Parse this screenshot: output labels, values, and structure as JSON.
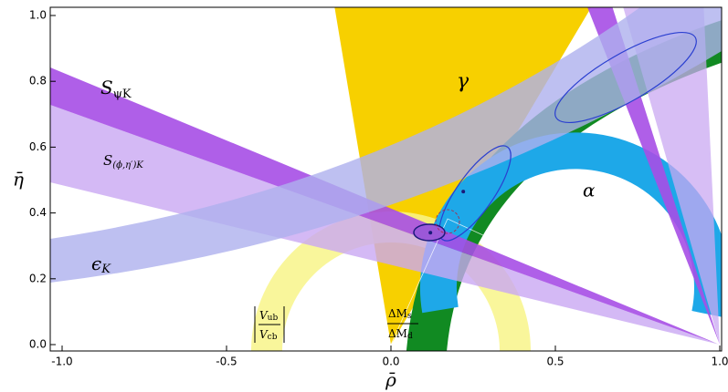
{
  "chart_data": {
    "type": "scatter",
    "x_label": "ρ̄",
    "y_label": "η̄",
    "xlim": [
      -1.0,
      1.0
    ],
    "ylim": [
      0.0,
      1.0
    ],
    "xticks": [
      {
        "value": -1.0,
        "label": "-1.0"
      },
      -0.5,
      {
        "value": 0.0,
        "label": "0.0"
      },
      0.5,
      {
        "value": 1.0,
        "label": "1.0"
      }
    ],
    "yticks": [
      {
        "value": 0.0,
        "label": "0.0"
      },
      0.2,
      0.4,
      0.6,
      0.8,
      {
        "value": 1.0,
        "label": "1.0"
      }
    ],
    "x": [
      0.12,
      0.22
    ],
    "values": [
      0.34,
      0.465
    ],
    "color": "#1a1a7a",
    "annotations": {
      "gamma": "γ",
      "alpha": "α",
      "s_psi_k": {
        "main": "S",
        "sub": "ψK"
      },
      "s_phi_eta_k": {
        "main": "S",
        "sub": "(ϕ,η′)K"
      },
      "epsilon_k": {
        "main": "ϵ",
        "sub": "K"
      },
      "vub_vcb": {
        "num": "V",
        "num_sub": "ub",
        "den": "V",
        "den_sub": "cb"
      },
      "dm_ratio": {
        "num": "ΔM",
        "num_sub": "s",
        "den": "ΔM",
        "den_sub": "d"
      }
    }
  }
}
